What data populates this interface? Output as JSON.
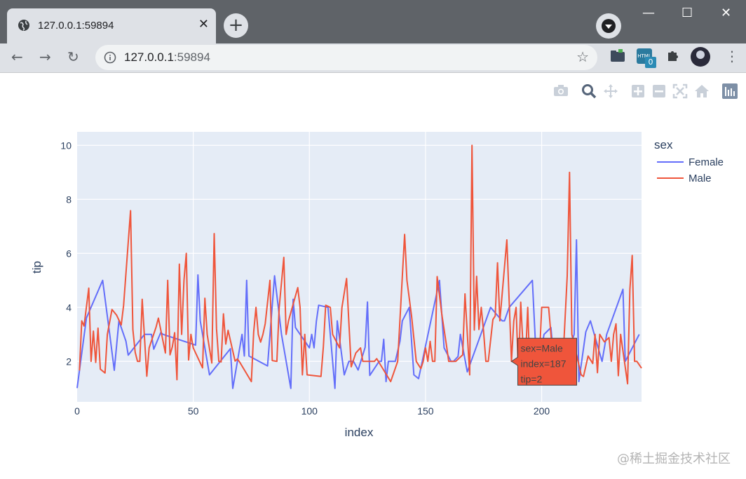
{
  "browser": {
    "tab_title": "127.0.0.1:59894",
    "url_host": "127.0.0.1",
    "url_port": ":59894",
    "extension_badge": "0"
  },
  "modebar": {
    "icons": [
      "camera-icon",
      "zoom-icon",
      "pan-icon",
      "zoom-in-icon",
      "zoom-out-icon",
      "autoscale-icon",
      "home-icon",
      "plotly-logo-icon"
    ]
  },
  "chart_data": {
    "type": "line",
    "xlabel": "index",
    "ylabel": "tip",
    "xlim": [
      0,
      243
    ],
    "ylim": [
      0.5,
      10.5
    ],
    "xticks": [
      0,
      50,
      100,
      150,
      200
    ],
    "yticks": [
      2,
      4,
      6,
      8,
      10
    ],
    "legend": {
      "title": "sex",
      "placement": "right"
    },
    "background": "#e5ecf6",
    "grid": true,
    "series": [
      {
        "name": "Female",
        "color": "#636efa",
        "points": [
          [
            0,
            1.01
          ],
          [
            4,
            3.61
          ],
          [
            11,
            5.0
          ],
          [
            14,
            3.02
          ],
          [
            16,
            1.67
          ],
          [
            18,
            3.5
          ],
          [
            21,
            2.75
          ],
          [
            22,
            2.23
          ],
          [
            29,
            3.0
          ],
          [
            32,
            3.0
          ],
          [
            33,
            2.45
          ],
          [
            36,
            3.07
          ],
          [
            37,
            3.0
          ],
          [
            51,
            2.6
          ],
          [
            52,
            5.2
          ],
          [
            53,
            3.5
          ],
          [
            57,
            1.5
          ],
          [
            66,
            2.47
          ],
          [
            67,
            1.0
          ],
          [
            71,
            3.0
          ],
          [
            72,
            2.2
          ],
          [
            73,
            5.0
          ],
          [
            74,
            2.2
          ],
          [
            82,
            1.83
          ],
          [
            85,
            5.17
          ],
          [
            88,
            3.0
          ],
          [
            92,
            1.0
          ],
          [
            93,
            4.3
          ],
          [
            94,
            3.25
          ],
          [
            100,
            2.5
          ],
          [
            101,
            3.0
          ],
          [
            102,
            2.5
          ],
          [
            103,
            3.48
          ],
          [
            104,
            4.08
          ],
          [
            108,
            4.0
          ],
          [
            111,
            1.0
          ],
          [
            112,
            3.5
          ],
          [
            115,
            1.5
          ],
          [
            117,
            2.0
          ],
          [
            119,
            2.0
          ],
          [
            121,
            1.68
          ],
          [
            124,
            2.52
          ],
          [
            125,
            4.2
          ],
          [
            126,
            1.48
          ],
          [
            130,
            2.0
          ],
          [
            131,
            2.0
          ],
          [
            132,
            2.82
          ],
          [
            133,
            1.25
          ],
          [
            134,
            2.0
          ],
          [
            136,
            2.0
          ],
          [
            137,
            2.0
          ],
          [
            139,
            2.75
          ],
          [
            140,
            3.5
          ],
          [
            143,
            4.0
          ],
          [
            145,
            1.5
          ],
          [
            147,
            1.36
          ],
          [
            156,
            5.0
          ],
          [
            158,
            2.5
          ],
          [
            161,
            2.0
          ],
          [
            162,
            2.0
          ],
          [
            164,
            2.18
          ],
          [
            165,
            3.0
          ],
          [
            168,
            1.61
          ],
          [
            178,
            4.0
          ],
          [
            183,
            3.5
          ],
          [
            184,
            3.5
          ],
          [
            186,
            4.0
          ],
          [
            196,
            5.0
          ],
          [
            198,
            1.5
          ],
          [
            201,
            3.0
          ],
          [
            204,
            3.25
          ],
          [
            206,
            1.25
          ],
          [
            210,
            2.0
          ],
          [
            214,
            3.0
          ],
          [
            215,
            6.5
          ],
          [
            216,
            1.25
          ],
          [
            219,
            3.09
          ],
          [
            221,
            3.5
          ],
          [
            226,
            2.0
          ],
          [
            228,
            3.0
          ],
          [
            235,
            4.67
          ],
          [
            236,
            2.0
          ],
          [
            242,
            3.0
          ]
        ]
      },
      {
        "name": "Male",
        "color": "#ef553b",
        "points": [
          [
            1,
            1.66
          ],
          [
            2,
            3.5
          ],
          [
            3,
            3.31
          ],
          [
            5,
            4.71
          ],
          [
            6,
            2.0
          ],
          [
            7,
            3.12
          ],
          [
            8,
            1.96
          ],
          [
            9,
            3.23
          ],
          [
            10,
            1.71
          ],
          [
            12,
            1.57
          ],
          [
            13,
            3.0
          ],
          [
            15,
            3.92
          ],
          [
            17,
            3.71
          ],
          [
            19,
            3.35
          ],
          [
            20,
            4.08
          ],
          [
            23,
            7.58
          ],
          [
            24,
            3.18
          ],
          [
            25,
            2.34
          ],
          [
            26,
            2.0
          ],
          [
            27,
            2.0
          ],
          [
            28,
            4.3
          ],
          [
            30,
            1.45
          ],
          [
            31,
            2.5
          ],
          [
            34,
            3.27
          ],
          [
            35,
            3.6
          ],
          [
            38,
            2.31
          ],
          [
            39,
            5.0
          ],
          [
            40,
            2.24
          ],
          [
            41,
            2.54
          ],
          [
            42,
            3.06
          ],
          [
            43,
            1.32
          ],
          [
            44,
            5.6
          ],
          [
            45,
            3.0
          ],
          [
            46,
            5.0
          ],
          [
            47,
            6.0
          ],
          [
            48,
            2.05
          ],
          [
            49,
            3.0
          ],
          [
            50,
            2.5
          ],
          [
            54,
            1.76
          ],
          [
            55,
            4.34
          ],
          [
            56,
            3.0
          ],
          [
            58,
            1.94
          ],
          [
            59,
            6.73
          ],
          [
            60,
            3.21
          ],
          [
            61,
            2.0
          ],
          [
            62,
            1.98
          ],
          [
            63,
            3.76
          ],
          [
            64,
            2.64
          ],
          [
            65,
            3.15
          ],
          [
            68,
            2.01
          ],
          [
            69,
            2.09
          ],
          [
            70,
            1.97
          ],
          [
            75,
            1.25
          ],
          [
            76,
            3.08
          ],
          [
            77,
            4.0
          ],
          [
            78,
            3.0
          ],
          [
            79,
            2.71
          ],
          [
            80,
            3.0
          ],
          [
            81,
            3.4
          ],
          [
            83,
            5.0
          ],
          [
            84,
            2.03
          ],
          [
            86,
            2.0
          ],
          [
            87,
            4.0
          ],
          [
            89,
            5.85
          ],
          [
            90,
            3.0
          ],
          [
            91,
            3.5
          ],
          [
            95,
            4.73
          ],
          [
            96,
            4.0
          ],
          [
            97,
            1.5
          ],
          [
            98,
            3.0
          ],
          [
            99,
            1.5
          ],
          [
            105,
            1.44
          ],
          [
            106,
            2.54
          ],
          [
            107,
            4.08
          ],
          [
            109,
            4.0
          ],
          [
            110,
            3.0
          ],
          [
            113,
            2.5
          ],
          [
            114,
            4.0
          ],
          [
            116,
            5.07
          ],
          [
            118,
            1.8
          ],
          [
            120,
            2.31
          ],
          [
            122,
            2.5
          ],
          [
            123,
            2.0
          ],
          [
            127,
            2.0
          ],
          [
            128,
            2.0
          ],
          [
            129,
            2.1
          ],
          [
            135,
            1.25
          ],
          [
            138,
            2.0
          ],
          [
            141,
            6.7
          ],
          [
            142,
            5.0
          ],
          [
            144,
            3.68
          ],
          [
            146,
            2.0
          ],
          [
            148,
            1.73
          ],
          [
            149,
            2.0
          ],
          [
            150,
            2.5
          ],
          [
            151,
            2.0
          ],
          [
            152,
            2.74
          ],
          [
            153,
            2.0
          ],
          [
            154,
            2.0
          ],
          [
            155,
            5.14
          ],
          [
            157,
            3.75
          ],
          [
            159,
            2.61
          ],
          [
            160,
            2.0
          ],
          [
            163,
            2.0
          ],
          [
            166,
            2.24
          ],
          [
            167,
            4.5
          ],
          [
            169,
            1.5
          ],
          [
            170,
            10.0
          ],
          [
            171,
            3.16
          ],
          [
            172,
            5.15
          ],
          [
            173,
            3.18
          ],
          [
            174,
            4.0
          ],
          [
            175,
            3.11
          ],
          [
            176,
            2.0
          ],
          [
            177,
            2.0
          ],
          [
            179,
            3.55
          ],
          [
            180,
            3.68
          ],
          [
            181,
            5.65
          ],
          [
            182,
            3.5
          ],
          [
            185,
            6.5
          ],
          [
            187,
            2.0
          ],
          [
            188,
            3.5
          ],
          [
            189,
            4.0
          ],
          [
            190,
            1.5
          ],
          [
            191,
            4.19
          ],
          [
            192,
            2.56
          ],
          [
            193,
            2.02
          ],
          [
            194,
            4.0
          ],
          [
            195,
            1.44
          ],
          [
            197,
            2.0
          ],
          [
            199,
            2.0
          ],
          [
            200,
            4.0
          ],
          [
            203,
            4.0
          ],
          [
            205,
            2.0
          ],
          [
            209,
            1.75
          ],
          [
            211,
            5.16
          ],
          [
            212,
            9.0
          ],
          [
            213,
            3.0
          ],
          [
            217,
            1.5
          ],
          [
            218,
            1.44
          ],
          [
            220,
            2.2
          ],
          [
            222,
            1.92
          ],
          [
            223,
            3.0
          ],
          [
            224,
            1.58
          ],
          [
            225,
            3.0
          ],
          [
            227,
            2.72
          ],
          [
            229,
            2.88
          ],
          [
            230,
            2.0
          ],
          [
            231,
            3.0
          ],
          [
            232,
            3.39
          ],
          [
            233,
            1.47
          ],
          [
            234,
            3.0
          ],
          [
            237,
            1.17
          ],
          [
            238,
            4.67
          ],
          [
            239,
            5.92
          ],
          [
            240,
            2.0
          ],
          [
            241,
            2.0
          ],
          [
            243,
            1.75
          ]
        ]
      }
    ],
    "hover": {
      "series": "Male",
      "lines": [
        "sex=Male",
        "index=187",
        "tip=2"
      ],
      "x": 187,
      "y": 2
    }
  },
  "watermark": "@稀土掘金技术社区"
}
